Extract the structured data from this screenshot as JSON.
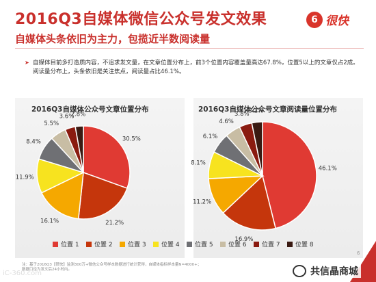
{
  "header": {
    "title": "2016Q3自媒体微信公众号发文效果",
    "subtitle": "自媒体头条依旧为主力，包揽近半数阅读量",
    "logo_mark": "6",
    "logo_text": "很快"
  },
  "body": {
    "bullet": "➤",
    "paragraph": "自媒体目前多打造质内容，不追求发文量，在文章位置分布上，前3个位置内容覆盖量高达67.8%，位置5以上的文章仅占2成。阅读量分布上，头条依旧是关注焦点，阅读量占比46.1%。"
  },
  "colors": {
    "accent": "#c9302c",
    "slices": [
      "#e03a33",
      "#c5360c",
      "#f5a800",
      "#f7e31f",
      "#6f7074",
      "#c8bda4",
      "#8a1b10",
      "#3a1a12"
    ]
  },
  "chart_data": [
    {
      "type": "pie",
      "title": "2016Q3自媒体公众号文章位置分布",
      "categories": [
        "位置1",
        "位置2",
        "位置3",
        "位置4",
        "位置5",
        "位置6",
        "位置7",
        "位置8"
      ],
      "values": [
        30.5,
        21.2,
        16.1,
        11.9,
        8.4,
        5.5,
        3.6,
        2.8
      ],
      "labels": [
        "30.5%",
        "21.2%",
        "16.1%",
        "11.9%",
        "8.4%",
        "5.5%",
        "3.6%",
        "2.8%"
      ]
    },
    {
      "type": "pie",
      "title": "2016Q3自媒体公众号文章阅读量位置分布",
      "categories": [
        "位置1",
        "位置2",
        "位置3",
        "位置4",
        "位置5",
        "位置6",
        "位置7",
        "位置8"
      ],
      "values": [
        46.1,
        16.9,
        11.2,
        8.1,
        6.1,
        4.6,
        3.8,
        3.2
      ],
      "labels": [
        "46.1%",
        "16.9%",
        "11.2%",
        "8.1%",
        "6.1%",
        "4.6%",
        "3.8%",
        "3.2%"
      ]
    }
  ],
  "legend": {
    "items": [
      "位置 1",
      "位置 2",
      "位置 3",
      "位置 4",
      "位置 5",
      "位置 6",
      "位置 7",
      "位置 8"
    ]
  },
  "footer": {
    "note_line1": "注：基于2016Q3【很快】监测300万+微信公众号样本数据进行统计获得，自媒体指标样本量N=4000+；",
    "note_line2": "数据口径为发文后24小时内。",
    "page_number": "6",
    "watermark_left": "iC-360.com",
    "watermark_right": "共信晶商城"
  }
}
